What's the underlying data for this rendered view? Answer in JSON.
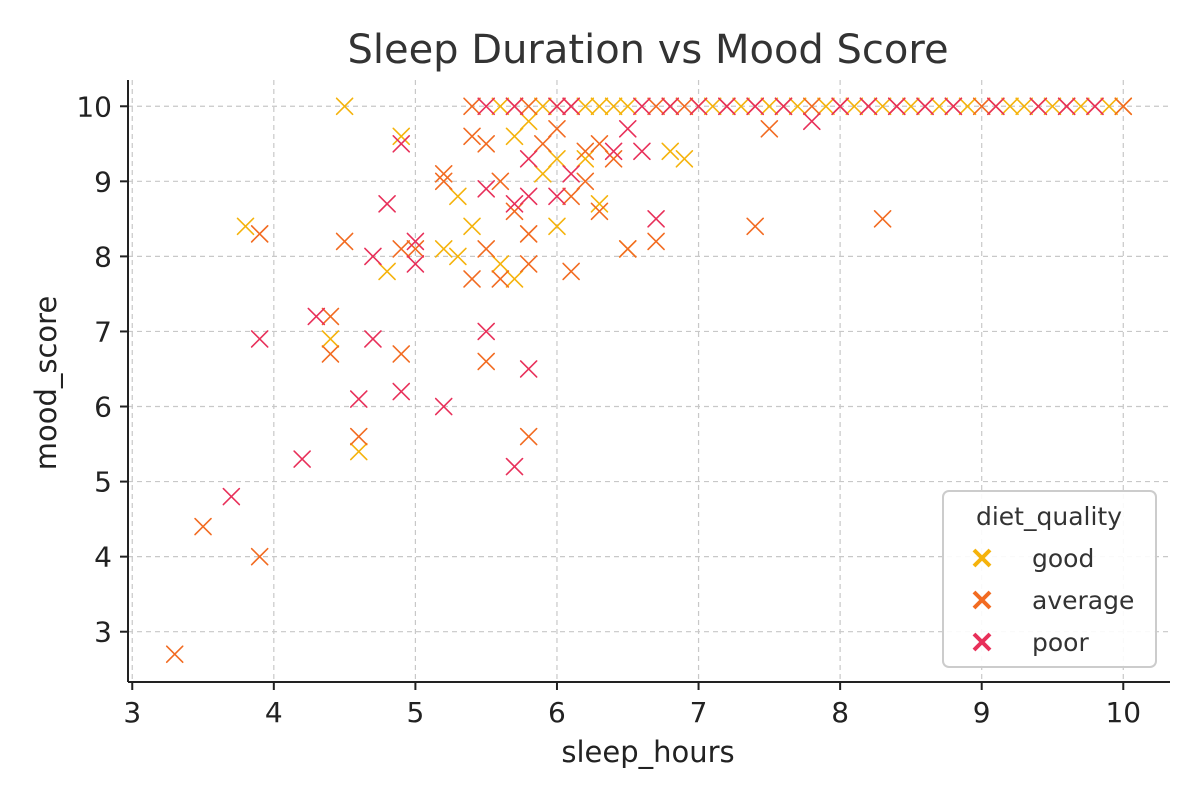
{
  "chart_data": {
    "type": "scatter",
    "title": "Sleep Duration vs Mood Score",
    "xlabel": "sleep_hours",
    "ylabel": "mood_score",
    "xlim": [
      2.97,
      10.33
    ],
    "ylim": [
      2.33,
      10.35
    ],
    "xticks": [
      3,
      4,
      5,
      6,
      7,
      8,
      9,
      10
    ],
    "yticks": [
      3,
      4,
      5,
      6,
      7,
      8,
      9,
      10
    ],
    "grid": true,
    "marker": "x",
    "legend": {
      "title": "diet_quality",
      "position": "lower-right"
    },
    "series": [
      {
        "name": "good",
        "color": "#f5b30c",
        "points": [
          [
            3.8,
            8.4
          ],
          [
            4.4,
            6.9
          ],
          [
            4.5,
            10.0
          ],
          [
            4.6,
            5.4
          ],
          [
            4.8,
            7.8
          ],
          [
            4.9,
            9.6
          ],
          [
            5.2,
            8.1
          ],
          [
            5.3,
            8.8
          ],
          [
            5.3,
            8.0
          ],
          [
            5.4,
            8.4
          ],
          [
            5.6,
            7.9
          ],
          [
            5.7,
            9.6
          ],
          [
            5.7,
            7.7
          ],
          [
            5.8,
            9.8
          ],
          [
            5.9,
            9.1
          ],
          [
            6.0,
            9.3
          ],
          [
            6.0,
            8.4
          ],
          [
            6.2,
            9.3
          ],
          [
            6.3,
            8.7
          ],
          [
            6.5,
            8.1
          ],
          [
            6.8,
            9.4
          ],
          [
            6.9,
            9.3
          ],
          [
            5.6,
            10.0
          ],
          [
            5.9,
            10.0
          ],
          [
            6.0,
            10.0
          ],
          [
            6.2,
            10.0
          ],
          [
            6.3,
            10.0
          ],
          [
            6.4,
            10.0
          ],
          [
            6.5,
            10.0
          ],
          [
            6.8,
            10.0
          ],
          [
            7.0,
            10.0
          ],
          [
            7.1,
            10.0
          ],
          [
            7.3,
            10.0
          ],
          [
            7.5,
            10.0
          ],
          [
            7.7,
            10.0
          ],
          [
            7.9,
            10.0
          ],
          [
            8.1,
            10.0
          ],
          [
            8.3,
            10.0
          ],
          [
            8.5,
            10.0
          ],
          [
            8.7,
            10.0
          ],
          [
            8.9,
            10.0
          ],
          [
            9.1,
            10.0
          ],
          [
            9.2,
            10.0
          ],
          [
            9.3,
            10.0
          ],
          [
            9.4,
            10.0
          ],
          [
            9.5,
            10.0
          ],
          [
            9.7,
            10.0
          ],
          [
            9.9,
            10.0
          ],
          [
            10.0,
            10.0
          ]
        ]
      },
      {
        "name": "average",
        "color": "#f26b21",
        "points": [
          [
            3.3,
            2.7
          ],
          [
            3.5,
            4.4
          ],
          [
            3.9,
            4.0
          ],
          [
            3.9,
            8.3
          ],
          [
            4.4,
            7.2
          ],
          [
            4.4,
            6.7
          ],
          [
            4.5,
            8.2
          ],
          [
            4.6,
            5.6
          ],
          [
            4.9,
            6.7
          ],
          [
            4.9,
            8.1
          ],
          [
            5.0,
            8.1
          ],
          [
            5.2,
            9.0
          ],
          [
            5.2,
            9.1
          ],
          [
            5.4,
            7.7
          ],
          [
            5.4,
            9.6
          ],
          [
            5.5,
            9.5
          ],
          [
            5.5,
            8.1
          ],
          [
            5.5,
            6.6
          ],
          [
            5.6,
            7.7
          ],
          [
            5.6,
            9.0
          ],
          [
            5.7,
            8.6
          ],
          [
            5.8,
            8.3
          ],
          [
            5.8,
            7.9
          ],
          [
            5.8,
            5.6
          ],
          [
            5.9,
            9.5
          ],
          [
            6.0,
            9.7
          ],
          [
            6.1,
            8.8
          ],
          [
            6.1,
            7.8
          ],
          [
            6.2,
            9.4
          ],
          [
            6.2,
            9.0
          ],
          [
            6.3,
            9.5
          ],
          [
            6.3,
            8.6
          ],
          [
            6.4,
            9.3
          ],
          [
            6.5,
            8.1
          ],
          [
            6.7,
            8.2
          ],
          [
            7.4,
            8.4
          ],
          [
            7.5,
            9.7
          ],
          [
            8.3,
            8.5
          ],
          [
            5.4,
            10.0
          ],
          [
            5.7,
            10.0
          ],
          [
            5.8,
            10.0
          ],
          [
            6.1,
            10.0
          ],
          [
            6.7,
            10.0
          ],
          [
            6.9,
            10.0
          ],
          [
            7.2,
            10.0
          ],
          [
            7.4,
            10.0
          ],
          [
            7.6,
            10.0
          ],
          [
            7.8,
            10.0
          ],
          [
            8.0,
            10.0
          ],
          [
            8.2,
            10.0
          ],
          [
            8.4,
            10.0
          ],
          [
            8.6,
            10.0
          ],
          [
            8.8,
            10.0
          ],
          [
            9.0,
            10.0
          ],
          [
            9.6,
            10.0
          ],
          [
            9.8,
            10.0
          ],
          [
            10.0,
            10.0
          ]
        ]
      },
      {
        "name": "poor",
        "color": "#e8305a",
        "points": [
          [
            3.7,
            4.8
          ],
          [
            3.9,
            6.9
          ],
          [
            4.2,
            5.3
          ],
          [
            4.3,
            7.2
          ],
          [
            4.6,
            6.1
          ],
          [
            4.7,
            8.0
          ],
          [
            4.7,
            6.9
          ],
          [
            4.8,
            8.7
          ],
          [
            4.9,
            9.5
          ],
          [
            4.9,
            6.2
          ],
          [
            5.0,
            8.2
          ],
          [
            5.0,
            7.9
          ],
          [
            5.2,
            6.0
          ],
          [
            5.5,
            8.9
          ],
          [
            5.5,
            7.0
          ],
          [
            5.7,
            8.7
          ],
          [
            5.7,
            5.2
          ],
          [
            5.8,
            9.3
          ],
          [
            5.8,
            8.8
          ],
          [
            5.8,
            6.5
          ],
          [
            6.0,
            8.8
          ],
          [
            6.1,
            9.1
          ],
          [
            6.4,
            9.4
          ],
          [
            6.5,
            9.7
          ],
          [
            6.6,
            9.4
          ],
          [
            6.7,
            8.5
          ],
          [
            7.8,
            9.8
          ],
          [
            5.5,
            10.0
          ],
          [
            5.7,
            10.0
          ],
          [
            6.0,
            10.0
          ],
          [
            6.1,
            10.0
          ],
          [
            6.6,
            10.0
          ],
          [
            6.8,
            10.0
          ],
          [
            7.0,
            10.0
          ],
          [
            7.2,
            10.0
          ],
          [
            7.4,
            10.0
          ],
          [
            7.6,
            10.0
          ],
          [
            8.0,
            10.0
          ],
          [
            8.2,
            10.0
          ],
          [
            8.4,
            10.0
          ],
          [
            8.6,
            10.0
          ],
          [
            8.8,
            10.0
          ],
          [
            9.1,
            10.0
          ],
          [
            9.4,
            10.0
          ],
          [
            9.6,
            10.0
          ],
          [
            9.8,
            10.0
          ]
        ]
      }
    ]
  }
}
